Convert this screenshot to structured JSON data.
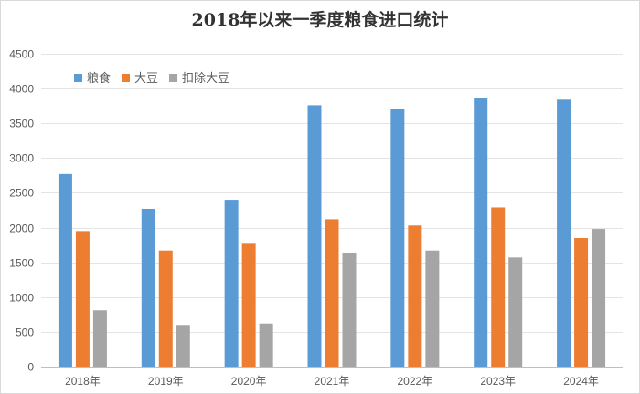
{
  "chart_data": {
    "type": "bar",
    "title": "2018年以来一季度粮食进口统计",
    "categories": [
      "2018年",
      "2019年",
      "2020年",
      "2021年",
      "2022年",
      "2023年",
      "2024年"
    ],
    "series": [
      {
        "name": "粮食",
        "color": "#5b9bd5",
        "values": [
          2770,
          2270,
          2400,
          3760,
          3700,
          3870,
          3840
        ]
      },
      {
        "name": "大豆",
        "color": "#ed7d31",
        "values": [
          1950,
          1670,
          1780,
          2120,
          2030,
          2290,
          1850
        ]
      },
      {
        "name": "扣除大豆",
        "color": "#a5a5a5",
        "values": [
          810,
          600,
          620,
          1640,
          1670,
          1570,
          1980
        ]
      }
    ],
    "ylim": [
      0,
      4500
    ],
    "yticks": [
      0,
      500,
      1000,
      1500,
      2000,
      2500,
      3000,
      3500,
      4000,
      4500
    ],
    "grid": true,
    "legend": "top-left"
  }
}
